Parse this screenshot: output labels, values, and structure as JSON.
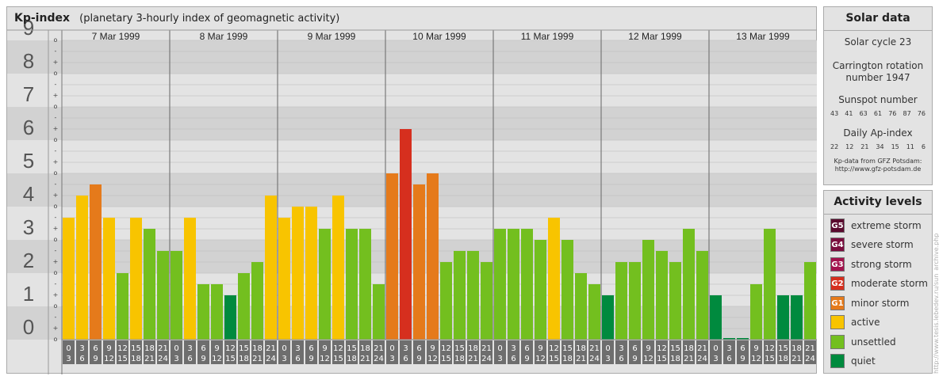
{
  "chart_data": {
    "type": "bar",
    "title": "Kp-index",
    "subtitle": "(planetary 3-hourly index of geomagnetic activity)",
    "ylim": [
      0,
      9
    ],
    "y_ticks": [
      "0",
      "1",
      "2",
      "3",
      "4",
      "5",
      "6",
      "7",
      "8",
      "9"
    ],
    "minor_ticks": [
      "o",
      "+",
      "-",
      "o",
      "+",
      "-",
      "o",
      "+",
      "-",
      "o",
      "+",
      "-",
      "o",
      "+",
      "-",
      "o",
      "+",
      "-",
      "o",
      "+",
      "-",
      "o",
      "+",
      "-",
      "o",
      "+",
      "-",
      "o"
    ],
    "days": [
      "7 Mar 1999",
      "8 Mar 1999",
      "9 Mar 1999",
      "10 Mar 1999",
      "11 Mar 1999",
      "12 Mar 1999",
      "13 Mar 1999"
    ],
    "intervals": [
      [
        "0",
        "3"
      ],
      [
        "3",
        "6"
      ],
      [
        "6",
        "9"
      ],
      [
        "9",
        "12"
      ],
      [
        "12",
        "15"
      ],
      [
        "15",
        "18"
      ],
      [
        "18",
        "21"
      ],
      [
        "21",
        "24"
      ]
    ],
    "values": [
      [
        3.667,
        4.333,
        4.667,
        3.667,
        2.0,
        3.667,
        3.333,
        2.667
      ],
      [
        2.667,
        3.667,
        1.667,
        1.667,
        1.333,
        2.0,
        2.333,
        4.333
      ],
      [
        3.667,
        4.0,
        4.0,
        3.333,
        4.333,
        3.333,
        3.333,
        1.667
      ],
      [
        5.0,
        6.333,
        4.667,
        5.0,
        2.333,
        2.667,
        2.667,
        2.333
      ],
      [
        3.333,
        3.333,
        3.333,
        3.0,
        3.667,
        3.0,
        2.0,
        1.667
      ],
      [
        1.333,
        2.333,
        2.333,
        3.0,
        2.667,
        2.333,
        3.333,
        2.667
      ],
      [
        1.333,
        0.0,
        0.0,
        1.667,
        3.333,
        1.333,
        1.333,
        2.333
      ]
    ],
    "colors": {
      "quiet": "#008a3e",
      "unsettled": "#73bf1f",
      "active": "#f8c400",
      "G1": "#e57a1b",
      "G2": "#d62f1e"
    }
  },
  "solar": {
    "title": "Solar data",
    "cycle": "Solar cycle 23",
    "carrington_line1": "Carrington rotation",
    "carrington_line2": "number 1947",
    "sunspot_title": "Sunspot number",
    "sunspot_values": [
      "43",
      "41",
      "63",
      "61",
      "76",
      "87",
      "76"
    ],
    "ap_title": "Daily Ap-index",
    "ap_values": [
      "22",
      "12",
      "21",
      "34",
      "15",
      "11",
      "6"
    ],
    "credit_line1": "Kp-data from GFZ Potsdam:",
    "credit_line2": "http://www.gfz-potsdam.de"
  },
  "levels": {
    "title": "Activity levels",
    "items": [
      {
        "code": "G5",
        "label": "extreme storm",
        "color": "#5a0a2e"
      },
      {
        "code": "G4",
        "label": "severe storm",
        "color": "#7a0d3e"
      },
      {
        "code": "G3",
        "label": "strong storm",
        "color": "#a3124d"
      },
      {
        "code": "G2",
        "label": "moderate storm",
        "color": "#d62f1e"
      },
      {
        "code": "G1",
        "label": "minor storm",
        "color": "#e57a1b"
      },
      {
        "code": "",
        "label": "active",
        "color": "#f8c400"
      },
      {
        "code": "",
        "label": "unsettled",
        "color": "#73bf1f"
      },
      {
        "code": "",
        "label": "quiet",
        "color": "#008a3e"
      }
    ]
  },
  "watermark": "http://www.tesis.lebedev.ru/sun_archive.php"
}
